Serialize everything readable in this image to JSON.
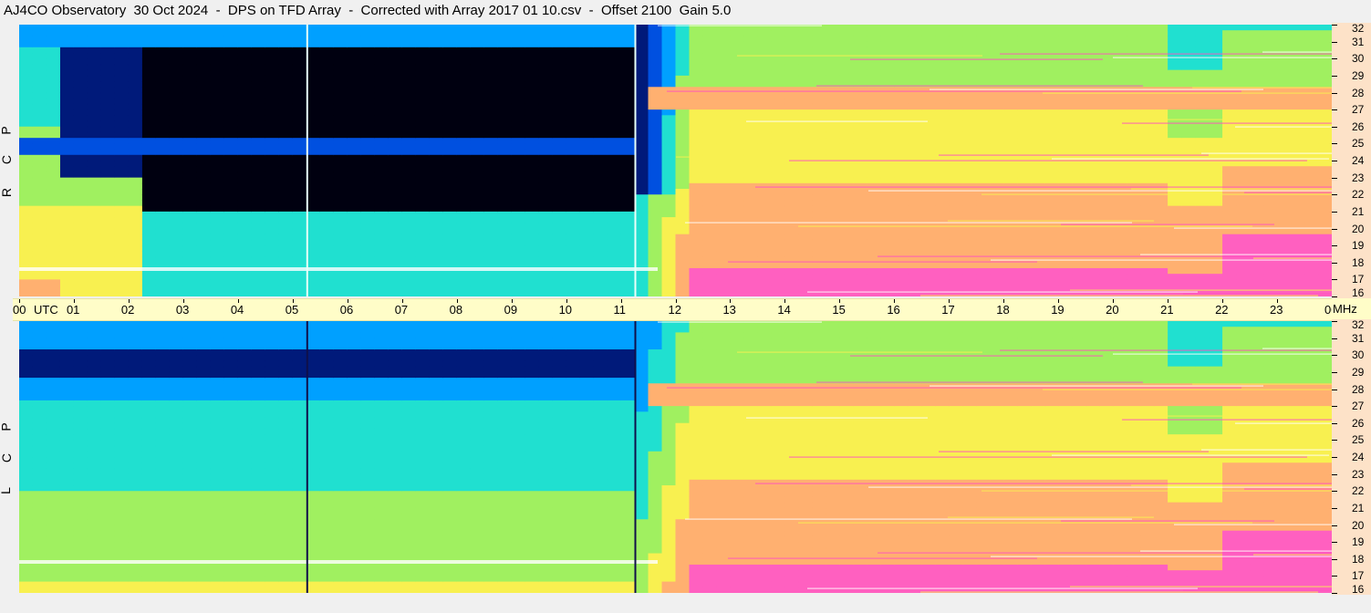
{
  "title": "AJ4CO Observatory  30 Oct 2024  -  DPS on TFD Array  -  Corrected with Array 2017 01 10.csv  -  Offset 2100  Gain 5.0",
  "chart_data": {
    "type": "heatmap",
    "title": "AJ4CO Observatory  30 Oct 2024  -  DPS on TFD Array  -  Corrected with Array 2017 01 10.csv  -  Offset 2100  Gain 5.0",
    "x_axis": {
      "unit_label": "UTC",
      "ticks": [
        "00",
        "01",
        "02",
        "03",
        "04",
        "05",
        "06",
        "07",
        "08",
        "09",
        "10",
        "11",
        "12",
        "13",
        "14",
        "15",
        "16",
        "17",
        "18",
        "19",
        "20",
        "21",
        "22",
        "23",
        "00"
      ],
      "range_hours": [
        0,
        24
      ]
    },
    "y_axis": {
      "unit_label": "MHz",
      "ticks": [
        "32",
        "31",
        "30",
        "29",
        "28",
        "27",
        "26",
        "25",
        "24",
        "23",
        "22",
        "21",
        "20",
        "19",
        "18",
        "17",
        "16"
      ],
      "range_mhz": [
        16,
        32
      ]
    },
    "panels": [
      {
        "name": "RCP",
        "side_label": [
          "R",
          "C",
          "P"
        ]
      },
      {
        "name": "LCP",
        "side_label": [
          "L",
          "C",
          "P"
        ]
      }
    ],
    "colormap": [
      "#000010",
      "#001a7a",
      "#0050e0",
      "#00a0ff",
      "#20e0d0",
      "#a0f060",
      "#f8f050",
      "#ffb070",
      "#ff60c0",
      "#ffffff"
    ],
    "grid": false
  }
}
